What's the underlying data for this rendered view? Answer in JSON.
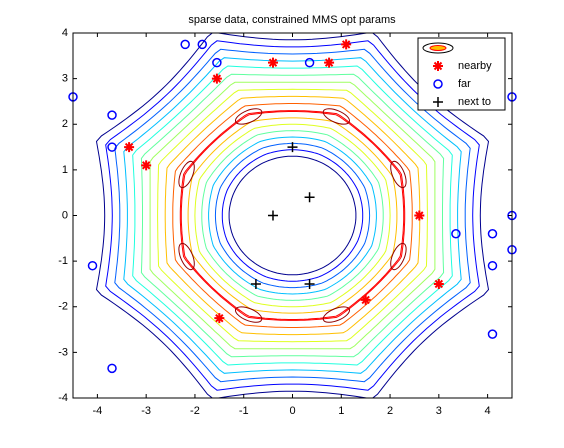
{
  "chart_data": {
    "type": "scatter",
    "title": "sparse data, constrained MMS opt params",
    "xlim": [
      -4.5,
      4.5
    ],
    "ylim": [
      -4,
      4
    ],
    "xticks": [
      -4,
      -3,
      -2,
      -1,
      0,
      1,
      2,
      3,
      4
    ],
    "yticks": [
      -4,
      -3,
      -2,
      -1,
      0,
      1,
      2,
      3,
      4
    ],
    "legend": "upper right",
    "series": [
      {
        "name": "nearby",
        "color": "#ff0000",
        "marker": "*",
        "x": [
          1.1,
          0.75,
          -0.4,
          -1.55,
          -3.35,
          -3.0,
          2.6,
          3.0,
          1.5,
          -1.5
        ],
        "values": [
          3.75,
          3.35,
          3.35,
          3.0,
          1.5,
          1.1,
          0,
          -1.5,
          -1.85,
          -2.25
        ]
      },
      {
        "name": "far",
        "color": "#0000ff",
        "marker": "o",
        "x": [
          -2.2,
          -1.85,
          -1.55,
          0.35,
          -4.5,
          -3.7,
          -3.7,
          4.5,
          4.5,
          3.35,
          4.1,
          4.5,
          -4.1,
          4.1,
          4.1,
          -3.7
        ],
        "values": [
          3.75,
          3.75,
          3.35,
          3.35,
          2.6,
          2.2,
          1.5,
          2.6,
          0,
          -0.4,
          -0.4,
          -0.75,
          -1.1,
          -1.1,
          -2.6,
          -3.35
        ]
      },
      {
        "name": "next to",
        "color": "#000000",
        "marker": "+",
        "x": [
          0,
          -0.4,
          0.35,
          -0.75,
          0.35
        ],
        "values": [
          1.5,
          0,
          0.4,
          -1.5,
          -1.5
        ]
      }
    ]
  }
}
